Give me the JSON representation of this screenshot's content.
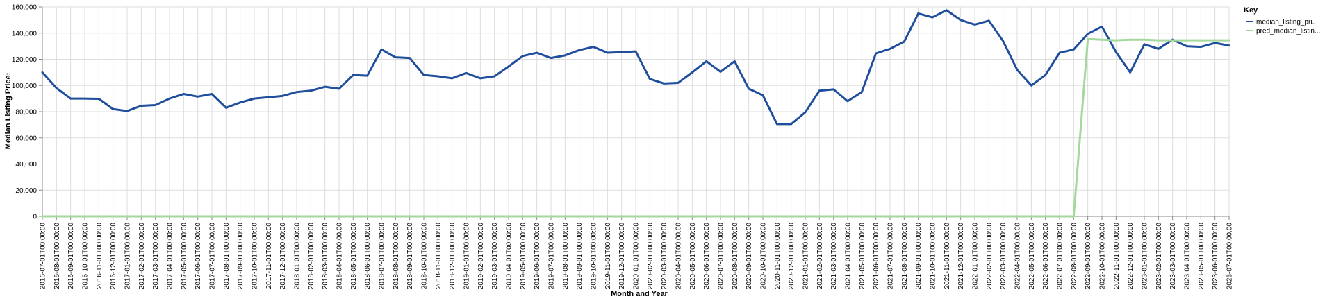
{
  "chart_data": {
    "type": "line",
    "xlabel": "Month and Year",
    "ylabel": "Median Listing Price:",
    "ylim": [
      0,
      160000
    ],
    "yticks": [
      "0",
      "20,000",
      "40,000",
      "60,000",
      "80,000",
      "100,000",
      "120,000",
      "140,000",
      "160,000"
    ],
    "grid": true,
    "legend": {
      "title": "Key",
      "placement": "top-right"
    },
    "categories": [
      "2016-07-01T00:00:00",
      "2016-08-01T00:00:00",
      "2016-09-01T00:00:00",
      "2016-10-01T00:00:00",
      "2016-11-01T00:00:00",
      "2016-12-01T00:00:00",
      "2017-01-01T00:00:00",
      "2017-02-01T00:00:00",
      "2017-03-01T00:00:00",
      "2017-04-01T00:00:00",
      "2017-05-01T00:00:00",
      "2017-06-01T00:00:00",
      "2017-07-01T00:00:00",
      "2017-08-01T00:00:00",
      "2017-09-01T00:00:00",
      "2017-10-01T00:00:00",
      "2017-11-01T00:00:00",
      "2017-12-01T00:00:00",
      "2018-01-01T00:00:00",
      "2018-02-01T00:00:00",
      "2018-03-01T00:00:00",
      "2018-04-01T00:00:00",
      "2018-05-01T00:00:00",
      "2018-06-01T00:00:00",
      "2018-07-01T00:00:00",
      "2018-08-01T00:00:00",
      "2018-09-01T00:00:00",
      "2018-10-01T00:00:00",
      "2018-11-01T00:00:00",
      "2018-12-01T00:00:00",
      "2019-01-01T00:00:00",
      "2019-02-01T00:00:00",
      "2019-03-01T00:00:00",
      "2019-04-01T00:00:00",
      "2019-05-01T00:00:00",
      "2019-06-01T00:00:00",
      "2019-07-01T00:00:00",
      "2019-08-01T00:00:00",
      "2019-09-01T00:00:00",
      "2019-10-01T00:00:00",
      "2019-11-01T00:00:00",
      "2019-12-01T00:00:00",
      "2020-01-01T00:00:00",
      "2020-02-01T00:00:00",
      "2020-03-01T00:00:00",
      "2020-04-01T00:00:00",
      "2020-05-01T00:00:00",
      "2020-06-01T00:00:00",
      "2020-07-01T00:00:00",
      "2020-08-01T00:00:00",
      "2020-09-01T00:00:00",
      "2020-10-01T00:00:00",
      "2020-11-01T00:00:00",
      "2020-12-01T00:00:00",
      "2021-01-01T00:00:00",
      "2021-02-01T00:00:00",
      "2021-03-01T00:00:00",
      "2021-04-01T00:00:00",
      "2021-05-01T00:00:00",
      "2021-06-01T00:00:00",
      "2021-07-01T00:00:00",
      "2021-08-01T00:00:00",
      "2021-09-01T00:00:00",
      "2021-10-01T00:00:00",
      "2021-11-01T00:00:00",
      "2021-12-01T00:00:00",
      "2022-01-01T00:00:00",
      "2022-02-01T00:00:00",
      "2022-03-01T00:00:00",
      "2022-04-01T00:00:00",
      "2022-05-01T00:00:00",
      "2022-06-01T00:00:00",
      "2022-07-01T00:00:00",
      "2022-08-01T00:00:00",
      "2022-09-01T00:00:00",
      "2022-10-01T00:00:00",
      "2022-11-01T00:00:00",
      "2022-12-01T00:00:00",
      "2023-01-01T00:00:00",
      "2023-02-01T00:00:00",
      "2023-03-01T00:00:00",
      "2023-04-01T00:00:00",
      "2023-05-01T00:00:00",
      "2023-06-01T00:00:00",
      "2023-07-01T00:00:00"
    ],
    "series": [
      {
        "name": "median_listing_pri...",
        "color": "#1f4e9c",
        "values": [
          110000,
          98000,
          90000,
          90000,
          89800,
          82000,
          80500,
          84500,
          85000,
          90000,
          93500,
          91500,
          93500,
          83000,
          87000,
          90000,
          91000,
          92000,
          95000,
          96000,
          99000,
          97500,
          108000,
          107500,
          127500,
          121500,
          121000,
          108000,
          107000,
          105500,
          109500,
          105500,
          107000,
          114500,
          122500,
          125000,
          121000,
          123000,
          127000,
          129500,
          125000,
          125500,
          126000,
          105000,
          101500,
          102000,
          110000,
          118500,
          110500,
          118500,
          97500,
          92500,
          70500,
          70500,
          79500,
          96000,
          97000,
          88000,
          95000,
          124500,
          128000,
          133500,
          155000,
          152000,
          157500,
          150000,
          146500,
          149500,
          134000,
          112000,
          100000,
          108000,
          125000,
          127500,
          139500,
          145000,
          125500,
          110000,
          131500,
          128000,
          135000,
          130000,
          129500,
          132500,
          130500
        ]
      },
      {
        "name": "pred_median_listin...",
        "color": "#a3d99a",
        "values": [
          0,
          0,
          0,
          0,
          0,
          0,
          0,
          0,
          0,
          0,
          0,
          0,
          0,
          0,
          0,
          0,
          0,
          0,
          0,
          0,
          0,
          0,
          0,
          0,
          0,
          0,
          0,
          0,
          0,
          0,
          0,
          0,
          0,
          0,
          0,
          0,
          0,
          0,
          0,
          0,
          0,
          0,
          0,
          0,
          0,
          0,
          0,
          0,
          0,
          0,
          0,
          0,
          0,
          0,
          0,
          0,
          0,
          0,
          0,
          0,
          0,
          0,
          0,
          0,
          0,
          0,
          0,
          0,
          0,
          0,
          0,
          0,
          0,
          0,
          135500,
          135000,
          134500,
          135000,
          135000,
          134500,
          134500,
          134500,
          134500,
          134500,
          134500
        ]
      }
    ]
  }
}
